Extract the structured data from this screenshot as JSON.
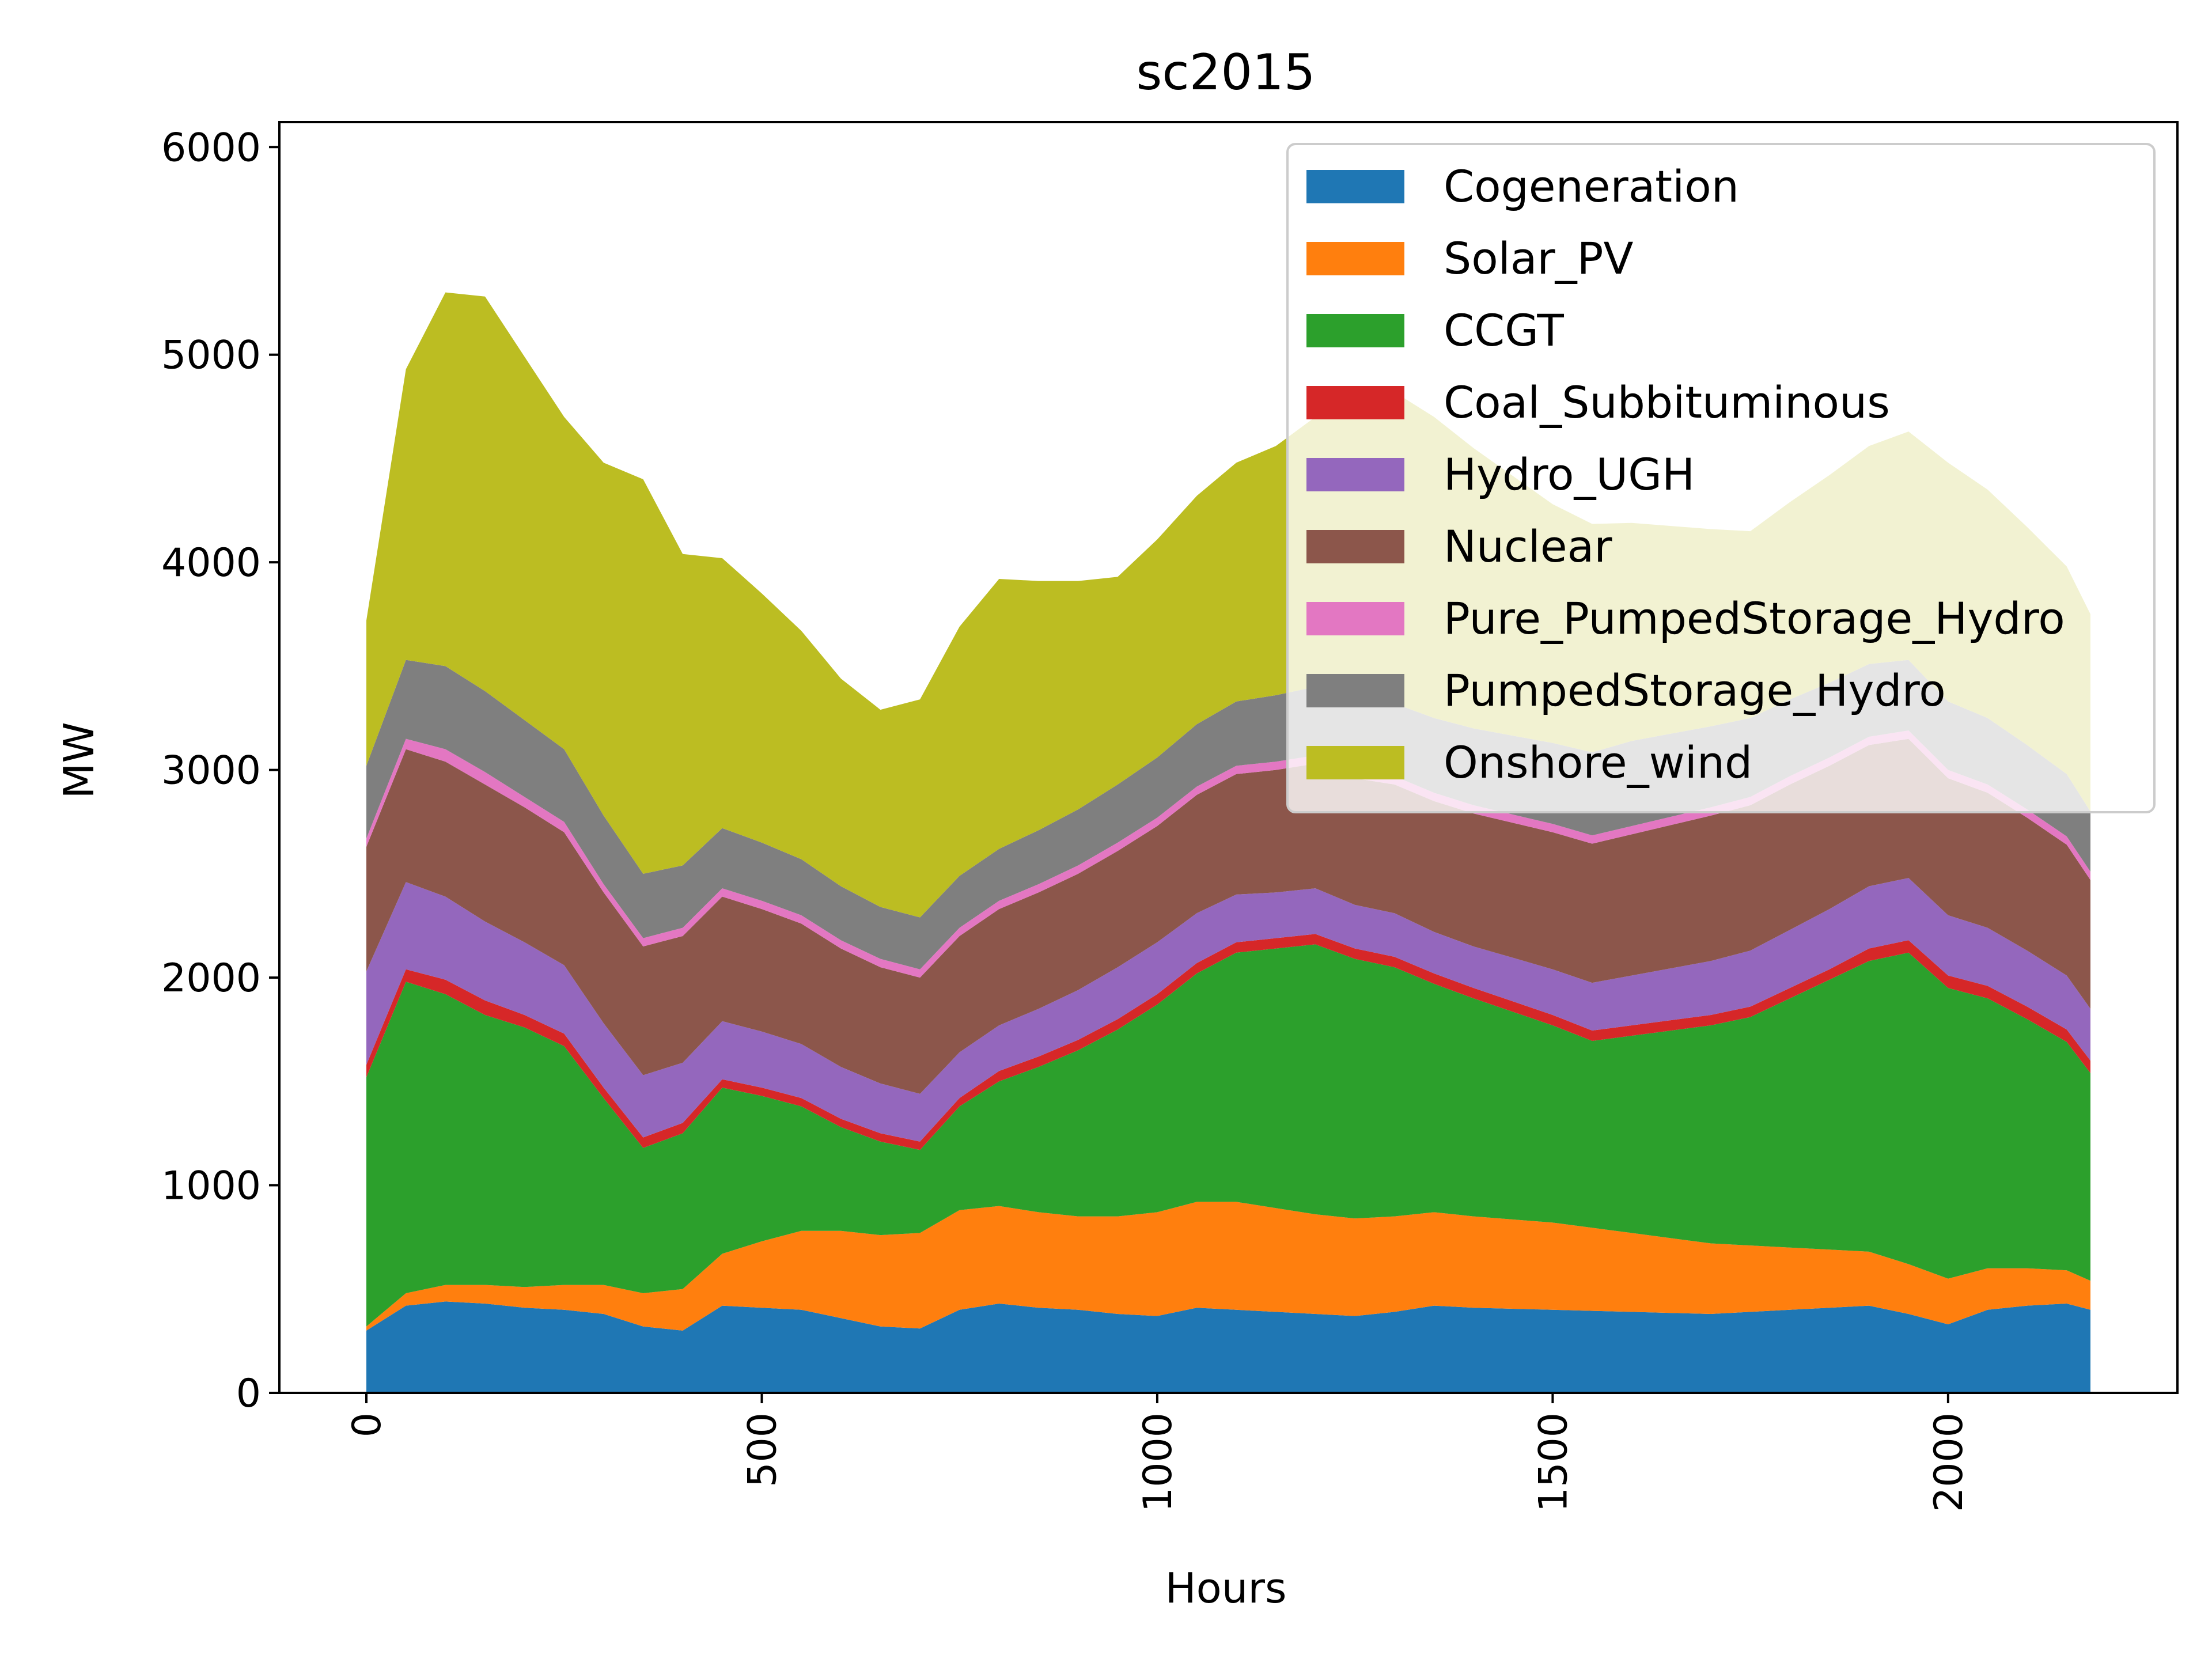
{
  "chart_data": {
    "type": "area",
    "stacked": true,
    "title": "sc2015",
    "xlabel": "Hours",
    "ylabel": "MW",
    "xlim": [
      -110,
      2290
    ],
    "ylim": [
      0,
      6120
    ],
    "xticks": [
      0,
      500,
      1000,
      1500,
      2000
    ],
    "xtick_labels": [
      "0",
      "500",
      "1000",
      "1500",
      "2000"
    ],
    "xtick_rotation": 90,
    "yticks": [
      0,
      1000,
      2000,
      3000,
      4000,
      5000,
      6000
    ],
    "ytick_labels": [
      "0",
      "1000",
      "2000",
      "3000",
      "4000",
      "5000",
      "6000"
    ],
    "grid": false,
    "legend_position": "top-right",
    "x_step": 50,
    "x_start": 0,
    "x_end": 2180,
    "series": [
      {
        "name": "Cogeneration",
        "color": "#1f77b4",
        "values": [
          300,
          420,
          440,
          430,
          410,
          400,
          380,
          320,
          300,
          420,
          410,
          400,
          360,
          320,
          310,
          400,
          430,
          410,
          400,
          380,
          370,
          410,
          400,
          390,
          380,
          370,
          390,
          420,
          410,
          405,
          400,
          395,
          390,
          385,
          380,
          390,
          400,
          410,
          420,
          380,
          330,
          400,
          420,
          430,
          400,
          390
        ]
      },
      {
        "name": "Solar_PV",
        "color": "#ff7f0e",
        "values": [
          20,
          60,
          80,
          90,
          100,
          120,
          140,
          160,
          200,
          250,
          320,
          380,
          420,
          440,
          460,
          480,
          470,
          460,
          450,
          470,
          500,
          510,
          520,
          500,
          480,
          470,
          460,
          450,
          440,
          430,
          420,
          400,
          380,
          360,
          340,
          320,
          300,
          280,
          260,
          240,
          220,
          200,
          180,
          160,
          140,
          120
        ]
      },
      {
        "name": "CCGT",
        "color": "#2ca02c",
        "values": [
          1200,
          1500,
          1400,
          1300,
          1250,
          1150,
          900,
          700,
          750,
          800,
          700,
          600,
          500,
          450,
          400,
          500,
          600,
          700,
          800,
          900,
          1000,
          1100,
          1200,
          1250,
          1300,
          1250,
          1200,
          1100,
          1050,
          1000,
          950,
          900,
          950,
          1000,
          1050,
          1100,
          1200,
          1300,
          1400,
          1500,
          1400,
          1300,
          1200,
          1100,
          1000,
          900
        ]
      },
      {
        "name": "Coal_Subbituminous",
        "color": "#d62728",
        "values": [
          60,
          60,
          70,
          70,
          60,
          60,
          50,
          50,
          50,
          40,
          40,
          40,
          40,
          40,
          40,
          40,
          50,
          50,
          50,
          50,
          50,
          50,
          50,
          50,
          50,
          50,
          50,
          50,
          50,
          50,
          50,
          50,
          50,
          50,
          50,
          50,
          50,
          50,
          60,
          60,
          60,
          60,
          60,
          60,
          60,
          60
        ]
      },
      {
        "name": "Hydro_UGH",
        "color": "#9467bd",
        "values": [
          450,
          420,
          400,
          380,
          350,
          330,
          310,
          300,
          290,
          280,
          270,
          260,
          250,
          240,
          230,
          220,
          220,
          230,
          240,
          250,
          250,
          240,
          230,
          220,
          220,
          210,
          210,
          200,
          200,
          210,
          220,
          230,
          240,
          250,
          260,
          270,
          280,
          290,
          300,
          300,
          290,
          280,
          270,
          260,
          250,
          240
        ]
      },
      {
        "name": "Nuclear",
        "color": "#8c564b",
        "values": [
          600,
          640,
          650,
          660,
          650,
          640,
          630,
          620,
          610,
          600,
          590,
          580,
          570,
          560,
          560,
          560,
          560,
          560,
          560,
          560,
          560,
          570,
          580,
          590,
          600,
          610,
          620,
          630,
          640,
          650,
          660,
          670,
          680,
          690,
          700,
          700,
          700,
          690,
          680,
          670,
          660,
          650,
          640,
          630,
          620,
          610
        ]
      },
      {
        "name": "Pure_PumpedStorage_Hydro",
        "color": "#e377c2",
        "values": [
          40,
          50,
          60,
          60,
          50,
          50,
          40,
          40,
          40,
          40,
          40,
          40,
          40,
          40,
          40,
          40,
          40,
          40,
          40,
          40,
          40,
          40,
          40,
          40,
          40,
          40,
          40,
          40,
          40,
          40,
          40,
          40,
          40,
          40,
          40,
          40,
          40,
          40,
          40,
          40,
          40,
          40,
          40,
          40,
          40,
          40
        ]
      },
      {
        "name": "PumpedStorage_Hydro",
        "color": "#7f7f7f",
        "values": [
          350,
          380,
          400,
          390,
          370,
          350,
          330,
          310,
          300,
          290,
          280,
          270,
          260,
          250,
          250,
          250,
          250,
          260,
          270,
          280,
          290,
          300,
          310,
          320,
          330,
          340,
          350,
          360,
          370,
          380,
          390,
          400,
          410,
          400,
          390,
          380,
          370,
          360,
          350,
          340,
          330,
          320,
          310,
          300,
          290,
          280
        ]
      },
      {
        "name": "Onshore_wind",
        "color": "#bcbd22",
        "values": [
          700,
          1400,
          1800,
          1900,
          1750,
          1600,
          1700,
          1900,
          1500,
          1300,
          1200,
          1100,
          1000,
          950,
          1050,
          1200,
          1300,
          1200,
          1100,
          1000,
          1050,
          1100,
          1150,
          1200,
          1300,
          1400,
          1500,
          1450,
          1350,
          1250,
          1150,
          1100,
          1050,
          1000,
          950,
          900,
          950,
          1000,
          1050,
          1100,
          1150,
          1100,
          1050,
          1000,
          950,
          900
        ]
      }
    ]
  }
}
